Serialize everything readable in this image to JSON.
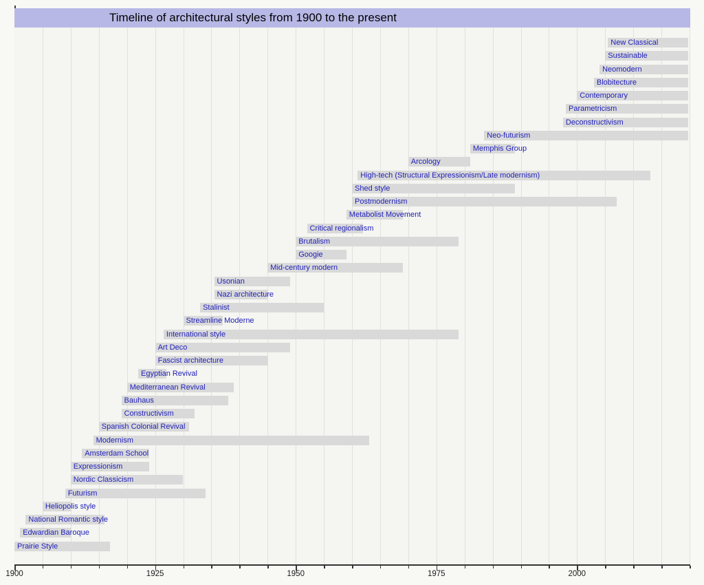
{
  "chart_data": {
    "type": "bar",
    "subtype": "gantt-timeline",
    "title": "Timeline of architectural styles from 1900 to the present",
    "colors": {
      "title_band": "#b8b8e6",
      "bar_fill": "#d9d9d9",
      "bar_label": "#2020bb",
      "plot_background": "#f5f5f1",
      "page_background": "#f8f8f5",
      "gridline": "#e0e0dc",
      "axis": "#333333"
    },
    "x_axis": {
      "min": 1900,
      "max": 2020,
      "major_ticks": [
        1900,
        1925,
        1950,
        1975,
        2000
      ],
      "minor_tick_interval": 5,
      "grid": true
    },
    "present_end_year": 2019.8,
    "styles": [
      {
        "label": "New Classical",
        "start": 2005.5,
        "end": "present"
      },
      {
        "label": "Sustainable",
        "start": 2005,
        "end": "present"
      },
      {
        "label": "Neomodern",
        "start": 2004,
        "end": "present"
      },
      {
        "label": "Blobitecture",
        "start": 2003,
        "end": "present"
      },
      {
        "label": "Contemporary",
        "start": 2000,
        "end": "present"
      },
      {
        "label": "Parametricism",
        "start": 1998,
        "end": "present"
      },
      {
        "label": "Deconstructivism",
        "start": 1997.5,
        "end": "present"
      },
      {
        "label": "Neo-futurism",
        "start": 1983.5,
        "end": "present"
      },
      {
        "label": "Memphis Group",
        "start": 1981,
        "end": 1989
      },
      {
        "label": "Arcology",
        "start": 1970,
        "end": 1981
      },
      {
        "label": "High-tech (Structural Expressionism/Late modernism)",
        "start": 1961,
        "end": 2013
      },
      {
        "label": "Shed style",
        "start": 1960,
        "end": 1989
      },
      {
        "label": "Postmodernism",
        "start": 1960,
        "end": 2007
      },
      {
        "label": "Metabolist Movement",
        "start": 1959,
        "end": 1969
      },
      {
        "label": "Critical regionalism",
        "start": 1952,
        "end": 1962
      },
      {
        "label": "Brutalism",
        "start": 1950,
        "end": 1979
      },
      {
        "label": "Googie",
        "start": 1950,
        "end": 1959
      },
      {
        "label": "Mid-century modern",
        "start": 1945,
        "end": 1969
      },
      {
        "label": "Usonian",
        "start": 1935.5,
        "end": 1949
      },
      {
        "label": "Nazi architecture",
        "start": 1935.5,
        "end": 1945
      },
      {
        "label": "Stalinist",
        "start": 1933,
        "end": 1955
      },
      {
        "label": "Streamline Moderne",
        "start": 1930,
        "end": 1937
      },
      {
        "label": "International style",
        "start": 1926.5,
        "end": 1979
      },
      {
        "label": "Art Deco",
        "start": 1925,
        "end": 1949
      },
      {
        "label": "Fascist architecture",
        "start": 1925,
        "end": 1945
      },
      {
        "label": "Egyptian Revival",
        "start": 1922,
        "end": 1927
      },
      {
        "label": "Mediterranean Revival",
        "start": 1920,
        "end": 1939
      },
      {
        "label": "Bauhaus",
        "start": 1919,
        "end": 1938
      },
      {
        "label": "Constructivism",
        "start": 1919,
        "end": 1932
      },
      {
        "label": "Spanish Colonial Revival",
        "start": 1915,
        "end": 1931
      },
      {
        "label": "Modernism",
        "start": 1914,
        "end": 1963
      },
      {
        "label": "Amsterdam School",
        "start": 1912,
        "end": 1924
      },
      {
        "label": "Expressionism",
        "start": 1910,
        "end": 1924
      },
      {
        "label": "Nordic Classicism",
        "start": 1910,
        "end": 1930
      },
      {
        "label": "Futurism",
        "start": 1909,
        "end": 1934
      },
      {
        "label": "Heliopolis style",
        "start": 1905,
        "end": 1910
      },
      {
        "label": "National Romantic style",
        "start": 1902,
        "end": 1916
      },
      {
        "label": "Edwardian Baroque",
        "start": 1901,
        "end": 1910
      },
      {
        "label": "Prairie Style",
        "start": 1900,
        "end": 1917
      }
    ]
  }
}
